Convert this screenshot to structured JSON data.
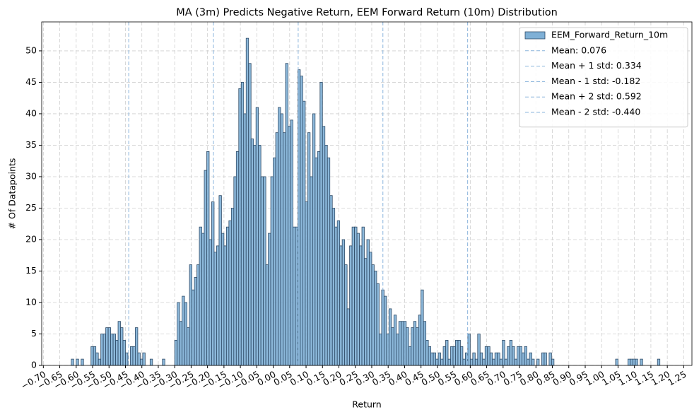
{
  "chart_data": {
    "type": "histogram",
    "title": "MA (3m) Predicts Negative Return, EEM Forward Return (10m) Distribution",
    "x_label": "Return",
    "y_label": "# Of Datapoints",
    "series": [
      {
        "name": "EEM_Forward_Return_10m",
        "color": "#7fb0d6",
        "edge_color": "#2e4a66",
        "bins": [
          -0.615,
          -0.6075,
          -0.6,
          -0.5925,
          -0.585,
          -0.5775,
          -0.57,
          -0.5625,
          -0.555,
          -0.5475,
          -0.54,
          -0.5325,
          -0.525,
          -0.5175,
          -0.51,
          -0.5025,
          -0.495,
          -0.4875,
          -0.48,
          -0.4725,
          -0.465,
          -0.4575,
          -0.45,
          -0.4425,
          -0.435,
          -0.4275,
          -0.42,
          -0.4125,
          -0.405,
          -0.3975,
          -0.39,
          -0.3825,
          -0.375,
          -0.3675,
          -0.36,
          -0.3525,
          -0.345,
          -0.3375,
          -0.33,
          -0.3225,
          -0.315,
          -0.3075,
          -0.3,
          -0.2925,
          -0.285,
          -0.2775,
          -0.27,
          -0.2625,
          -0.255,
          -0.2475,
          -0.24,
          -0.2325,
          -0.225,
          -0.2175,
          -0.21,
          -0.2025,
          -0.195,
          -0.1875,
          -0.18,
          -0.1725,
          -0.165,
          -0.1575,
          -0.15,
          -0.1425,
          -0.135,
          -0.1275,
          -0.12,
          -0.1125,
          -0.105,
          -0.0975,
          -0.09,
          -0.0825,
          -0.075,
          -0.0675,
          -0.06,
          -0.0525,
          -0.045,
          -0.0375,
          -0.03,
          -0.0225,
          -0.015,
          -0.0075,
          0,
          0.0075,
          0.015,
          0.0225,
          0.03,
          0.0375,
          0.045,
          0.0525,
          0.06,
          0.0675,
          0.075,
          0.0825,
          0.09,
          0.0975,
          0.105,
          0.1125,
          0.12,
          0.1275,
          0.135,
          0.1425,
          0.15,
          0.1575,
          0.165,
          0.1725,
          0.18,
          0.1875,
          0.195,
          0.2025,
          0.21,
          0.2175,
          0.225,
          0.2325,
          0.24,
          0.2475,
          0.255,
          0.2625,
          0.27,
          0.2775,
          0.285,
          0.2925,
          0.3,
          0.3075,
          0.315,
          0.3225,
          0.33,
          0.3375,
          0.345,
          0.3525,
          0.36,
          0.3675,
          0.375,
          0.3825,
          0.39,
          0.3975,
          0.405,
          0.4125,
          0.42,
          0.4275,
          0.435,
          0.4425,
          0.45,
          0.4575,
          0.465,
          0.4725,
          0.48,
          0.4875,
          0.495,
          0.5025,
          0.51,
          0.5175,
          0.525,
          0.5325,
          0.54,
          0.5475,
          0.555,
          0.5625,
          0.57,
          0.5775,
          0.585,
          0.5925,
          0.6,
          0.6075,
          0.615,
          0.6225,
          0.63,
          0.6375,
          0.645,
          0.6525,
          0.66,
          0.6675,
          0.675,
          0.6825,
          0.69,
          0.6975,
          0.705,
          0.7125,
          0.72,
          0.7275,
          0.735,
          0.7425,
          0.75,
          0.7575,
          0.765,
          0.7725,
          0.78,
          0.7875,
          0.795,
          0.8025,
          0.81,
          0.8175,
          0.825,
          0.8325,
          0.84,
          0.8475,
          0.855,
          0.8625,
          0.87,
          0.8775,
          0.885,
          0.8925,
          0.9,
          0.9075,
          0.915,
          0.9225,
          0.93,
          0.9375,
          0.945,
          0.9525,
          0.96,
          0.9675,
          0.975,
          0.9825,
          0.99,
          0.9975,
          1.005,
          1.0125,
          1.02,
          1.0275,
          1.035,
          1.0425,
          1.05,
          1.0575,
          1.065,
          1.0725,
          1.08,
          1.0875,
          1.095,
          1.1025,
          1.11,
          1.1175,
          1.125,
          1.1325,
          1.14,
          1.1475,
          1.155,
          1.1625,
          1.17,
          1.1775,
          1.185
        ],
        "counts": [
          1,
          0,
          1,
          0,
          1,
          0,
          0,
          0,
          3,
          3,
          2,
          1,
          5,
          5,
          6,
          6,
          5,
          5,
          4,
          7,
          6,
          4,
          2,
          0,
          3,
          3,
          6,
          2,
          1,
          2,
          0,
          0,
          1,
          0,
          0,
          0,
          0,
          1,
          0,
          0,
          0,
          0,
          4,
          10,
          7,
          11,
          10,
          6,
          16,
          12,
          14,
          16,
          22,
          21,
          31,
          34,
          20,
          26,
          18,
          19,
          27,
          21,
          19,
          22,
          23,
          25,
          30,
          34,
          44,
          45,
          40,
          52,
          48,
          36,
          35,
          41,
          35,
          30,
          30,
          16,
          21,
          30,
          33,
          37,
          41,
          40,
          37,
          48,
          38,
          39,
          22,
          22,
          47,
          46,
          42,
          26,
          37,
          30,
          40,
          33,
          34,
          45,
          38,
          35,
          33,
          27,
          25,
          22,
          23,
          19,
          20,
          16,
          9,
          19,
          22,
          22,
          21,
          19,
          22,
          17,
          20,
          18,
          16,
          15,
          13,
          5,
          12,
          11,
          5,
          9,
          6,
          8,
          5,
          7,
          7,
          7,
          6,
          3,
          6,
          7,
          6,
          8,
          12,
          7,
          4,
          3,
          2,
          2,
          1,
          2,
          1,
          3,
          4,
          1,
          3,
          3,
          4,
          4,
          3,
          1,
          2,
          5,
          1,
          2,
          1,
          5,
          2,
          1,
          3,
          3,
          2,
          1,
          2,
          2,
          1,
          4,
          1,
          3,
          4,
          3,
          1,
          3,
          3,
          2,
          3,
          1,
          2,
          1,
          0,
          1,
          0,
          2,
          2,
          0,
          2,
          1,
          0,
          0,
          0,
          0,
          0,
          0,
          0,
          0,
          0,
          0,
          0,
          0,
          0,
          0,
          0,
          0,
          0,
          0,
          0,
          0,
          0,
          0,
          0,
          0,
          0,
          1,
          0,
          0,
          0,
          0,
          1,
          1,
          1,
          1,
          0,
          1,
          0,
          0,
          0,
          0,
          0,
          0,
          1,
          0
        ]
      }
    ],
    "reference_lines": [
      {
        "label": "Mean: 0.076",
        "value": 0.076,
        "color": "#8ab4dc"
      },
      {
        "label": "Mean + 1 std: 0.334",
        "value": 0.334,
        "color": "#8ab4dc"
      },
      {
        "label": "Mean - 1 std: -0.182",
        "value": -0.182,
        "color": "#8ab4dc"
      },
      {
        "label": "Mean + 2 std: 0.592",
        "value": 0.592,
        "color": "#8ab4dc"
      },
      {
        "label": "Mean - 2 std: -0.440",
        "value": -0.44,
        "color": "#8ab4dc"
      }
    ],
    "xlim": [
      -0.705,
      1.275
    ],
    "ylim": [
      0,
      54.6
    ],
    "xticks": [
      {
        "value": -0.7,
        "label": "−0.70"
      },
      {
        "value": -0.65,
        "label": "−0.65"
      },
      {
        "value": -0.6,
        "label": "−0.60"
      },
      {
        "value": -0.55,
        "label": "−0.55"
      },
      {
        "value": -0.5,
        "label": "−0.50"
      },
      {
        "value": -0.45,
        "label": "−0.45"
      },
      {
        "value": -0.4,
        "label": "−0.40"
      },
      {
        "value": -0.35,
        "label": "−0.35"
      },
      {
        "value": -0.3,
        "label": "−0.30"
      },
      {
        "value": -0.25,
        "label": "−0.25"
      },
      {
        "value": -0.2,
        "label": "−0.20"
      },
      {
        "value": -0.15,
        "label": "−0.15"
      },
      {
        "value": -0.1,
        "label": "−0.10"
      },
      {
        "value": -0.05,
        "label": "−0.05"
      },
      {
        "value": 0,
        "label": "0.00"
      },
      {
        "value": 0.05,
        "label": "0.05"
      },
      {
        "value": 0.1,
        "label": "0.10"
      },
      {
        "value": 0.15,
        "label": "0.15"
      },
      {
        "value": 0.2,
        "label": "0.20"
      },
      {
        "value": 0.25,
        "label": "0.25"
      },
      {
        "value": 0.3,
        "label": "0.30"
      },
      {
        "value": 0.35,
        "label": "0.35"
      },
      {
        "value": 0.4,
        "label": "0.40"
      },
      {
        "value": 0.45,
        "label": "0.45"
      },
      {
        "value": 0.5,
        "label": "0.50"
      },
      {
        "value": 0.55,
        "label": "0.55"
      },
      {
        "value": 0.6,
        "label": "0.60"
      },
      {
        "value": 0.65,
        "label": "0.65"
      },
      {
        "value": 0.7,
        "label": "0.70"
      },
      {
        "value": 0.75,
        "label": "0.75"
      },
      {
        "value": 0.8,
        "label": "0.80"
      },
      {
        "value": 0.85,
        "label": "0.85"
      },
      {
        "value": 0.9,
        "label": "0.90"
      },
      {
        "value": 0.95,
        "label": "0.95"
      },
      {
        "value": 1,
        "label": "1.00"
      },
      {
        "value": 1.05,
        "label": "1.05"
      },
      {
        "value": 1.1,
        "label": "1.10"
      },
      {
        "value": 1.15,
        "label": "1.15"
      },
      {
        "value": 1.2,
        "label": "1.20"
      },
      {
        "value": 1.25,
        "label": "1.25"
      }
    ],
    "yticks": [
      0,
      5,
      10,
      15,
      20,
      25,
      30,
      35,
      40,
      45,
      50
    ],
    "grid": true,
    "legend": "upper right"
  }
}
